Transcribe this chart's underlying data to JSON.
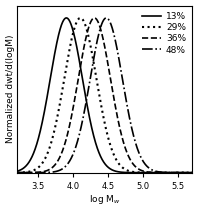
{
  "curves": [
    {
      "label": "13%",
      "mean": 3.9,
      "std": 0.23,
      "linestyle": "solid",
      "linewidth": 1.2
    },
    {
      "label": "29%",
      "mean": 4.1,
      "std": 0.23,
      "linestyle": "dotted",
      "linewidth": 1.5
    },
    {
      "label": "36%",
      "mean": 4.3,
      "std": 0.23,
      "linestyle": "dashed",
      "linewidth": 1.2
    },
    {
      "label": "48%",
      "mean": 4.47,
      "std": 0.23,
      "linestyle": "dashdot",
      "linewidth": 1.2
    }
  ],
  "xmin": 3.2,
  "xmax": 5.7,
  "xlabel": "log M$_w$",
  "ylabel": "Normalized dwt/d(logM)",
  "xticks": [
    3.5,
    4.0,
    4.5,
    5.0,
    5.5
  ],
  "xtick_labels": [
    "3.5",
    "4.0",
    "4.5",
    "5.0",
    "5.5"
  ],
  "color": "black",
  "legend_fontsize": 6.5,
  "axis_fontsize": 6.5,
  "tick_fontsize": 6.0,
  "background_color": "#ffffff"
}
